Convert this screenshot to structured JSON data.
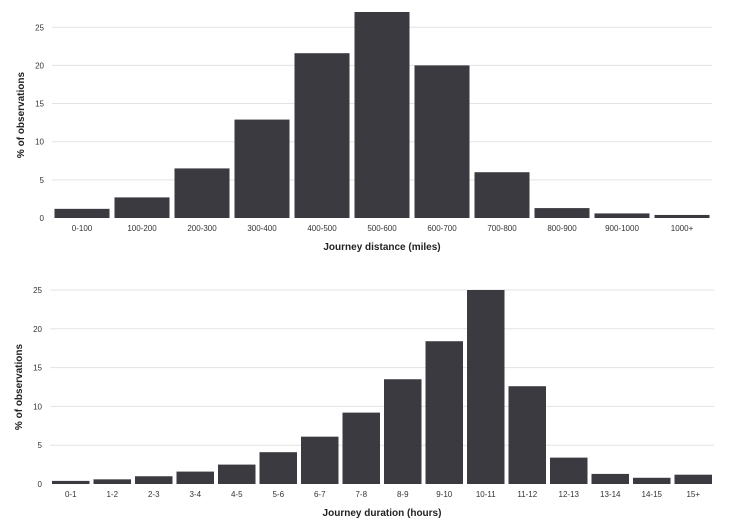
{
  "chart_data": [
    {
      "type": "bar",
      "title": "",
      "xlabel": "Journey distance (miles)",
      "ylabel": "% of observations",
      "ylim": [
        0,
        27
      ],
      "yticks": [
        0,
        5,
        10,
        15,
        20,
        25
      ],
      "grid": true,
      "bar_color": "#3b3a40",
      "categories": [
        "0-100",
        "100-200",
        "200-300",
        "300-400",
        "400-500",
        "500-600",
        "600-700",
        "700-800",
        "800-900",
        "900-1000",
        "1000+"
      ],
      "values": [
        1.2,
        2.7,
        6.5,
        12.9,
        21.6,
        27.0,
        20.0,
        6.0,
        1.3,
        0.6,
        0.4
      ]
    },
    {
      "type": "bar",
      "title": "",
      "xlabel": "Journey duration (hours)",
      "ylabel": "% of observations",
      "ylim": [
        0,
        25
      ],
      "yticks": [
        0,
        5,
        10,
        15,
        20,
        25
      ],
      "grid": true,
      "bar_color": "#3b3a40",
      "categories": [
        "0-1",
        "1-2",
        "2-3",
        "3-4",
        "4-5",
        "5-6",
        "6-7",
        "7-8",
        "8-9",
        "9-10",
        "10-11",
        "11-12",
        "12-13",
        "13-14",
        "14-15",
        "15+"
      ],
      "values": [
        0.4,
        0.6,
        1.0,
        1.6,
        2.5,
        4.1,
        6.1,
        9.2,
        13.5,
        18.4,
        25.0,
        12.6,
        3.4,
        1.3,
        0.8,
        1.2
      ]
    }
  ]
}
